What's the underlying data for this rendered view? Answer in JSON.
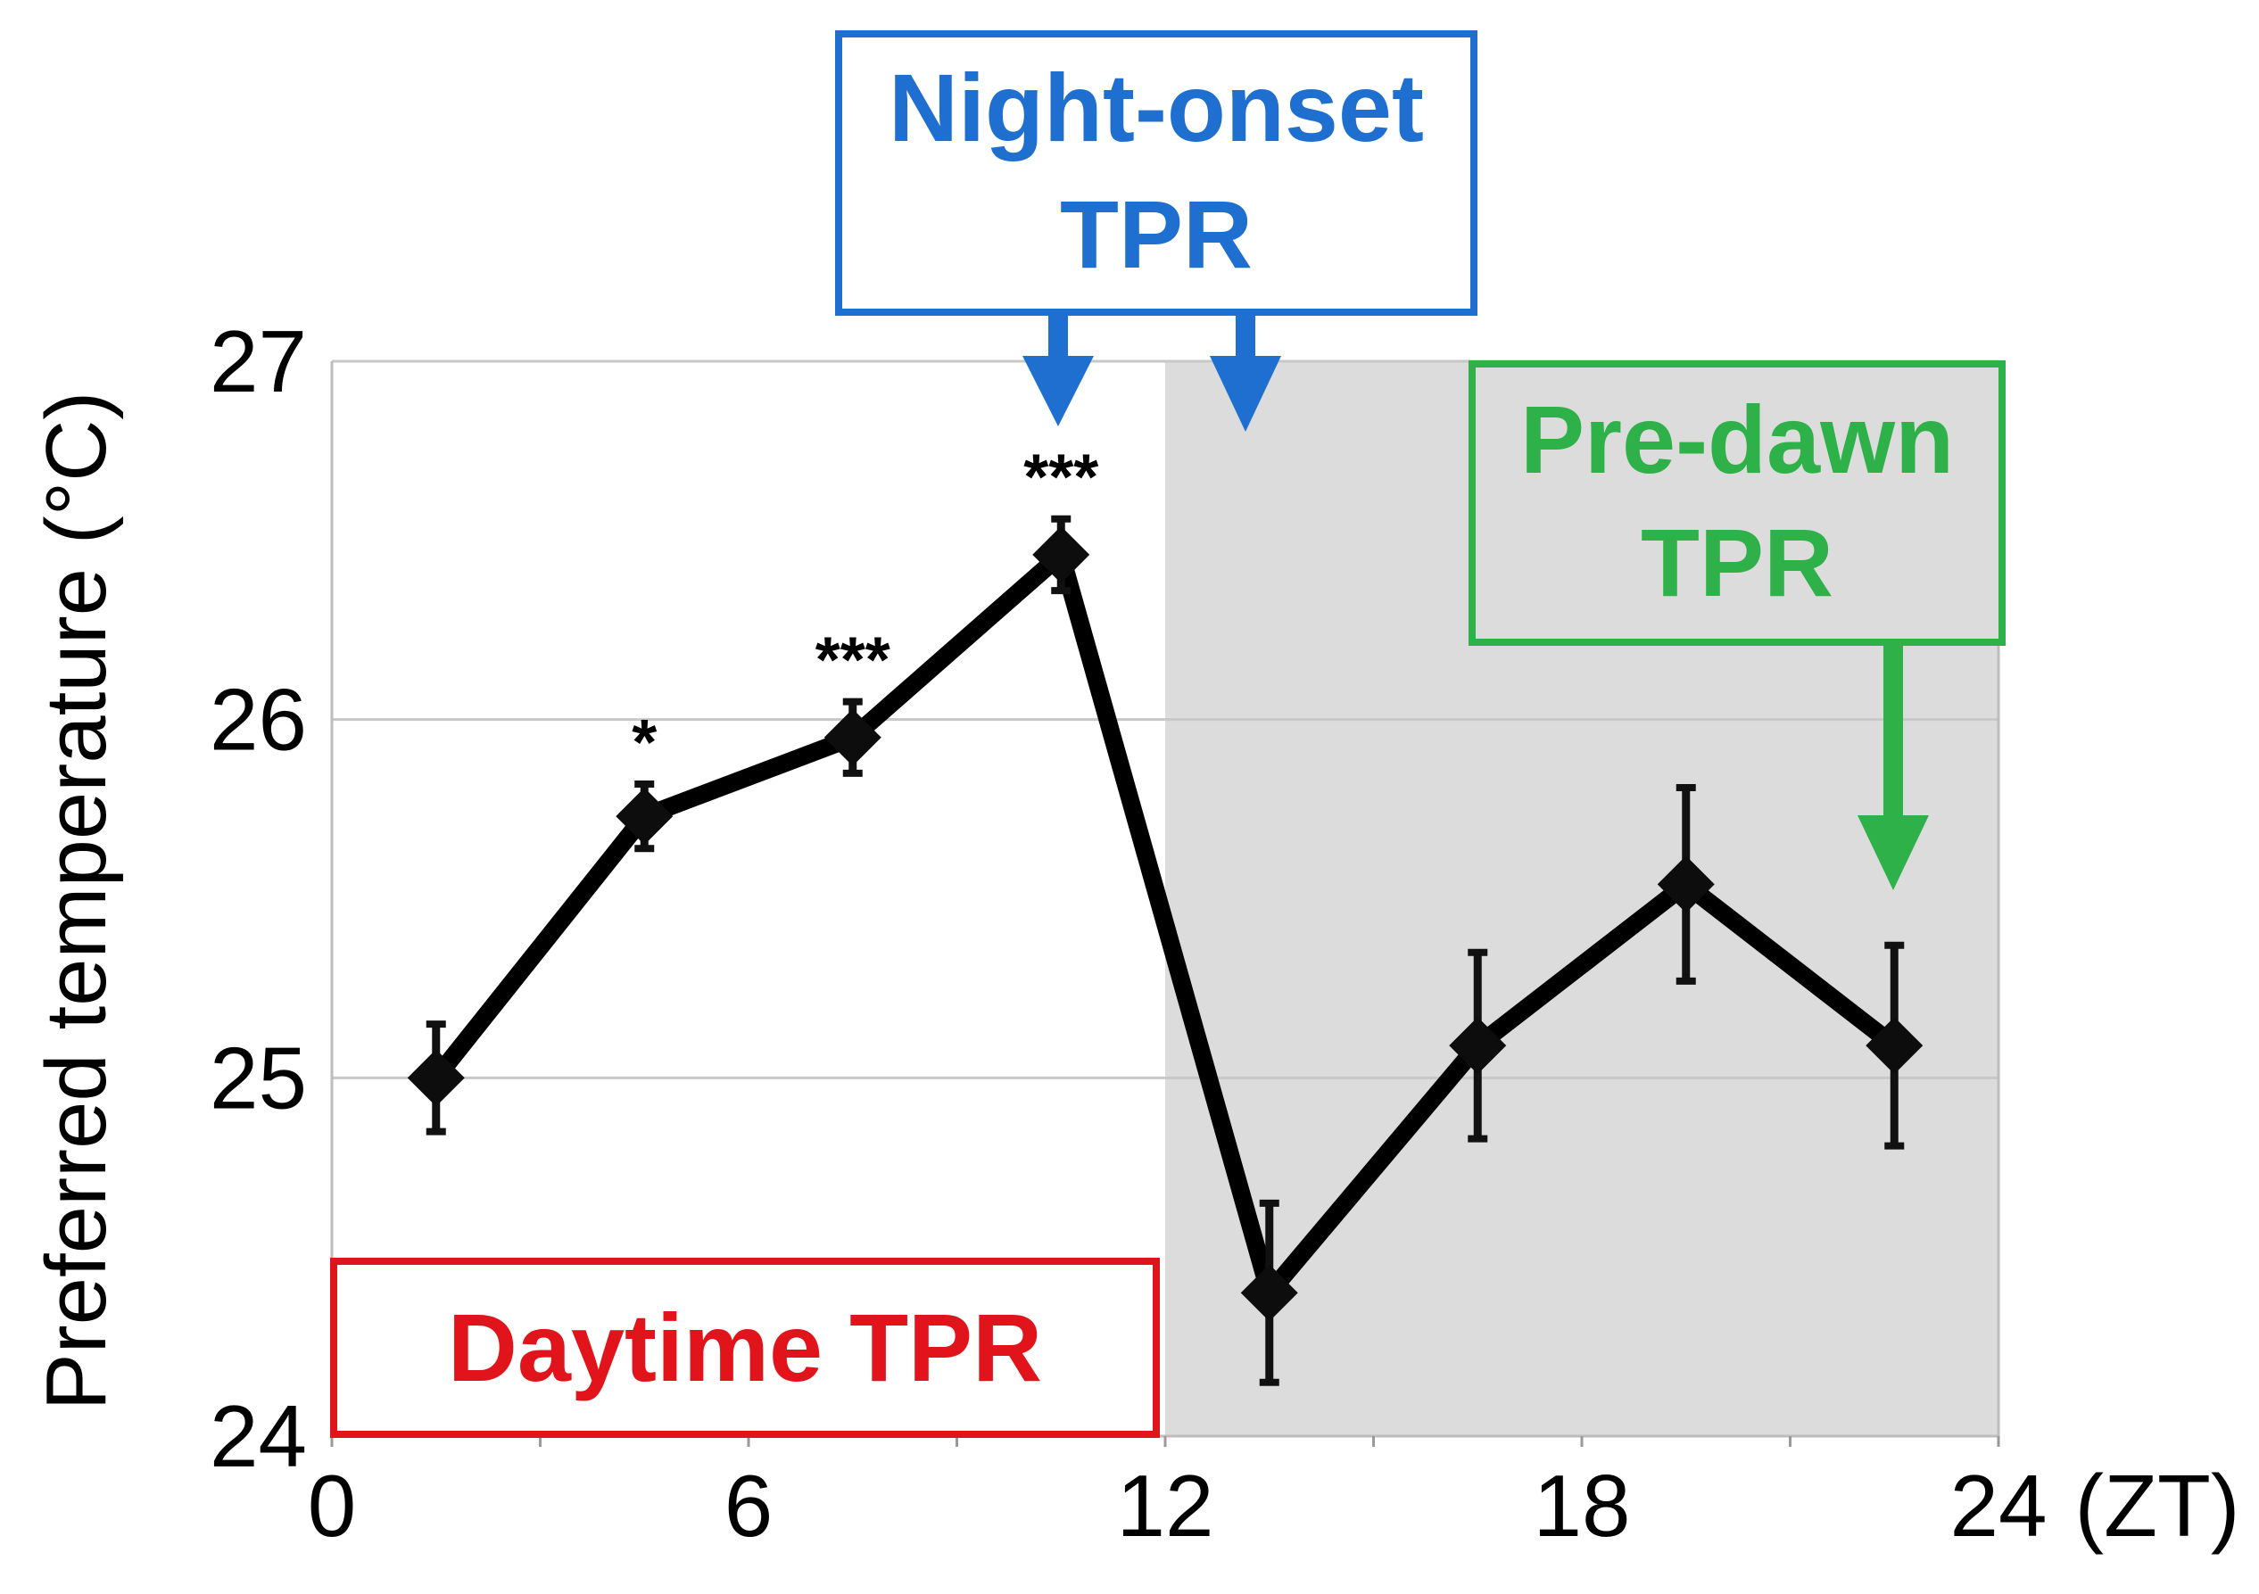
{
  "chart_data": {
    "type": "line",
    "ylabel": "Preferred temperature (°C)",
    "xlabel": "",
    "x_unit_label": "(ZT)",
    "xlim": [
      0,
      24
    ],
    "ylim": [
      24,
      27
    ],
    "x_ticks": [
      0,
      6,
      12,
      18,
      24
    ],
    "y_ticks": [
      24,
      25,
      26,
      27
    ],
    "x_tick_labels": [
      "0",
      "6",
      "12",
      "18",
      "24"
    ],
    "y_tick_labels": [
      "24",
      "25",
      "26",
      "27"
    ],
    "grid": true,
    "shaded_region": {
      "from": 12,
      "to": 24,
      "meaning": "dark phase"
    },
    "series": [
      {
        "x": [
          1.5,
          4.5,
          7.5,
          10.5,
          13.5,
          16.5,
          19.5,
          22.5
        ],
        "y": [
          25.0,
          25.73,
          25.95,
          26.46,
          24.4,
          25.09,
          25.54,
          25.09
        ],
        "error": [
          0.15,
          0.09,
          0.1,
          0.1,
          0.25,
          0.26,
          0.27,
          0.28
        ],
        "significance": [
          "",
          "*",
          "***",
          "***",
          "",
          "",
          "",
          ""
        ]
      }
    ],
    "annotations": [
      {
        "text_line1": "Night-onset",
        "text_line2": "TPR",
        "color": "#1f6fd0",
        "points_to_x": [
          10.5,
          13.5
        ]
      },
      {
        "text_line1": "Pre-dawn",
        "text_line2": "TPR",
        "color": "#2fb14a",
        "points_to_x": [
          22.5
        ]
      },
      {
        "text_line1": "Daytime TPR",
        "text_line2": "",
        "color": "#e0141a"
      }
    ]
  },
  "colors": {
    "line": "#000000",
    "night_shade": "#dcdcdc",
    "grid": "#c8c8c8",
    "night_onset": "#1f6fd0",
    "pre_dawn": "#2fb14a",
    "daytime": "#e0141a"
  }
}
